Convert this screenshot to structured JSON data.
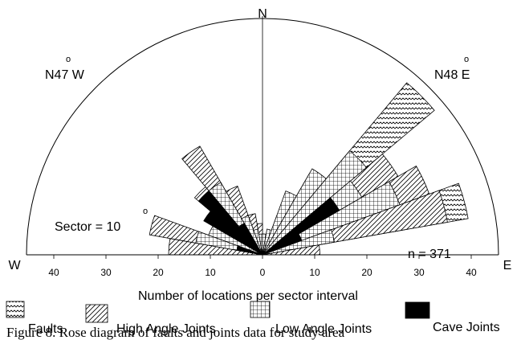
{
  "chart_data": {
    "type": "rose",
    "sector_size_deg": 10,
    "count_label": "n = 371",
    "sector_label": "Sector = 10",
    "sector_degree_mark": "o",
    "xlabel": "Number of locations per sector interval",
    "axis_range": [
      0,
      45
    ],
    "ticks": [
      "40",
      "30",
      "20",
      "10",
      "0",
      "10",
      "20",
      "30",
      "40"
    ],
    "tick_values": [
      -40,
      -30,
      -20,
      -10,
      0,
      10,
      20,
      30,
      40
    ],
    "compass": {
      "north": "N",
      "west": "W",
      "east": "E"
    },
    "annotations": [
      {
        "text": "N47 W",
        "degree_mark": "o",
        "azimuth": -47
      },
      {
        "text": "N48 E",
        "degree_mark": "o",
        "azimuth": 48
      }
    ],
    "legend": [
      {
        "key": "faults",
        "label": "Faults",
        "pattern": "zigzag"
      },
      {
        "key": "high",
        "label": "High Angle Joints",
        "pattern": "diagonal-hatch"
      },
      {
        "key": "low",
        "label": "Low Angle Joints",
        "pattern": "crosshatch"
      },
      {
        "key": "cave",
        "label": "Cave Joints",
        "pattern": "solid-black"
      }
    ],
    "series": [
      {
        "key": "high",
        "start_azimuths": [
          -90,
          -80,
          -70,
          -60,
          -50,
          -40,
          -30,
          -20,
          -10,
          0,
          10,
          20,
          30,
          40,
          50,
          60,
          70,
          80
        ],
        "values": [
          18,
          22,
          10,
          12,
          17,
          24,
          14,
          8,
          6,
          4,
          4,
          8,
          18,
          24,
          30,
          34,
          36,
          11
        ]
      },
      {
        "key": "low",
        "start_azimuths": [
          -80,
          -70,
          -60,
          -50,
          -40,
          -30,
          -20,
          -10,
          0,
          10,
          20,
          30,
          40,
          50,
          60,
          70
        ],
        "values": [
          13,
          11,
          9,
          8,
          16,
          8,
          5,
          4,
          4,
          5,
          13,
          19,
          26,
          22,
          28,
          14
        ]
      },
      {
        "key": "faults",
        "start_azimuths": [
          40,
          50,
          70
        ],
        "values": [
          43,
          26,
          40
        ]
      },
      {
        "key": "cave",
        "start_azimuths": [
          -80,
          -60,
          -50,
          -40,
          50,
          60
        ],
        "values": [
          5,
          13,
          16,
          7,
          17,
          8
        ]
      }
    ]
  },
  "caption": "Figure 8. Rose diagram of faults and joints data for study area"
}
